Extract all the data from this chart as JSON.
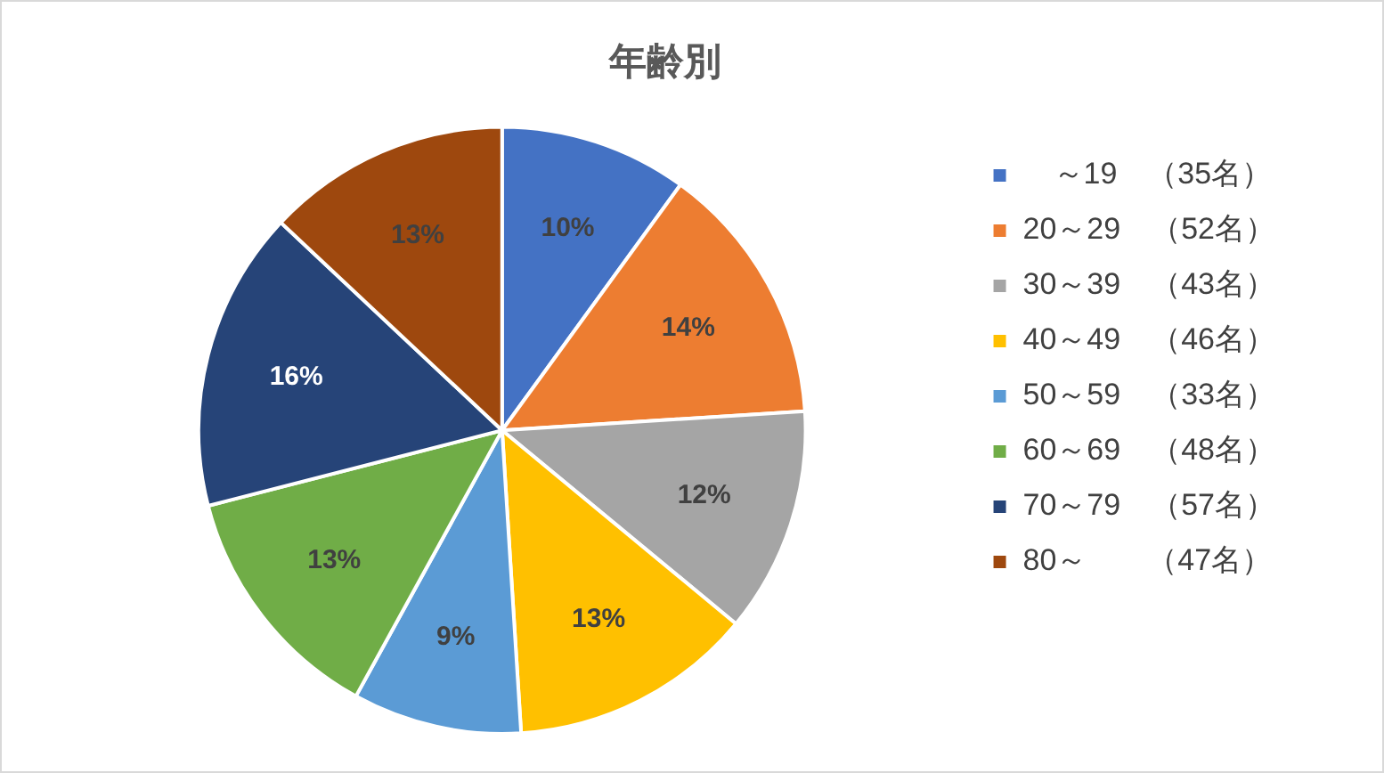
{
  "chart_data": {
    "type": "pie",
    "title": "年齢別",
    "categories": [
      "　～19　（35名）",
      "20～29　（52名）",
      "30～39　（43名）",
      "40～49　（46名）",
      "50～59　（33名）",
      "60～69　（48名）",
      "70～79　（57名）",
      "80～　　（47名）"
    ],
    "values": [
      10,
      14,
      12,
      13,
      9,
      13,
      16,
      13
    ],
    "colors": [
      "#4472c4",
      "#ed7d31",
      "#a5a5a5",
      "#ffc000",
      "#5b9bd5",
      "#70ad47",
      "#264478",
      "#9e480e"
    ],
    "value_labels": [
      "10%",
      "14%",
      "12%",
      "13%",
      "9%",
      "13%",
      "16%",
      "13%"
    ],
    "legend": "right"
  }
}
